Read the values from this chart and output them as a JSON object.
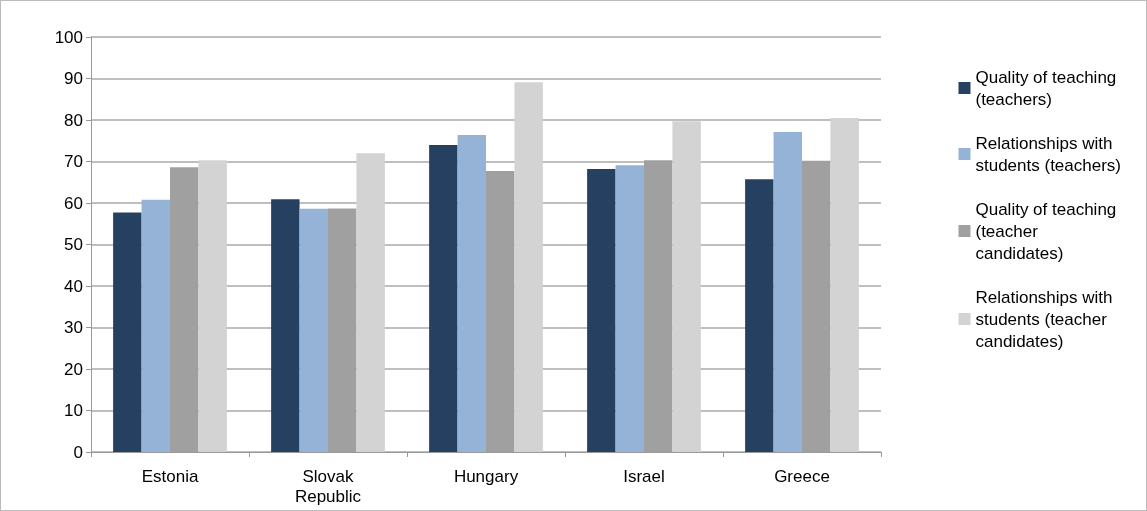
{
  "chart_data": {
    "type": "bar",
    "categories": [
      "Estonia",
      "Slovak Republic",
      "Hungary",
      "Israel",
      "Greece"
    ],
    "series": [
      {
        "name": "Quality of teaching (teachers)",
        "color": "#254061",
        "values": [
          57.7,
          60.9,
          74.0,
          68.2,
          65.7
        ]
      },
      {
        "name": "Relationships with students (teachers)",
        "color": "#95b3d7",
        "values": [
          60.8,
          58.6,
          76.4,
          69.1,
          77.1
        ]
      },
      {
        "name": "Quality of teaching (teacher candidates)",
        "color": "#a0a0a0",
        "values": [
          68.6,
          58.7,
          67.7,
          70.3,
          70.2
        ]
      },
      {
        "name": "Relationships with students (teacher candidates)",
        "color": "#d3d3d3",
        "values": [
          70.3,
          72.0,
          89.1,
          79.7,
          80.5
        ]
      }
    ],
    "ylim": [
      0,
      100
    ],
    "yticks": [
      0,
      10,
      20,
      30,
      40,
      50,
      60,
      70,
      80,
      90,
      100
    ],
    "grid": "y",
    "legend": "right"
  }
}
